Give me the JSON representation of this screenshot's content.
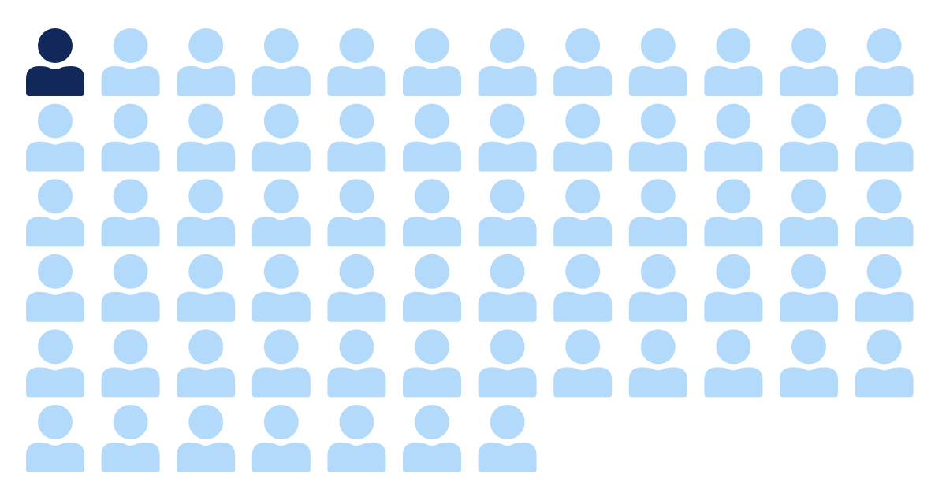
{
  "chart_data": {
    "type": "pictogram",
    "values": [
      1,
      66
    ],
    "colors": [
      "#12275a",
      "#b3dafb"
    ]
  }
}
